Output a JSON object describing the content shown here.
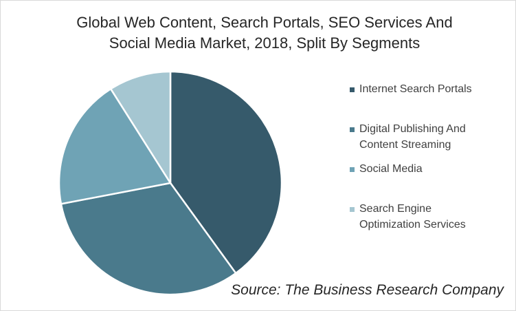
{
  "chart_data": {
    "type": "pie",
    "title": "Global Web Content, Search Portals, SEO Services And Social Media Market, 2018, Split By Segments",
    "title_lines": [
      "Global Web Content, Search Portals, SEO Services And",
      "Social Media Market, 2018, Split By Segments"
    ],
    "categories": [
      "Internet Search Portals",
      "Digital Publishing And Content Streaming",
      "Social Media",
      "Search Engine Optimization Services"
    ],
    "legend_lines": [
      [
        "Internet Search Portals"
      ],
      [
        "Digital Publishing And",
        "Content Streaming"
      ],
      [
        "Social Media"
      ],
      [
        "Search Engine",
        "Optimization Services"
      ]
    ],
    "values": [
      40,
      32,
      19,
      9
    ],
    "colors": [
      "#365a6b",
      "#4a7a8c",
      "#6fa3b5",
      "#a5c6d1"
    ],
    "legend_position": "right",
    "source": "Source: The Business Research Company"
  }
}
